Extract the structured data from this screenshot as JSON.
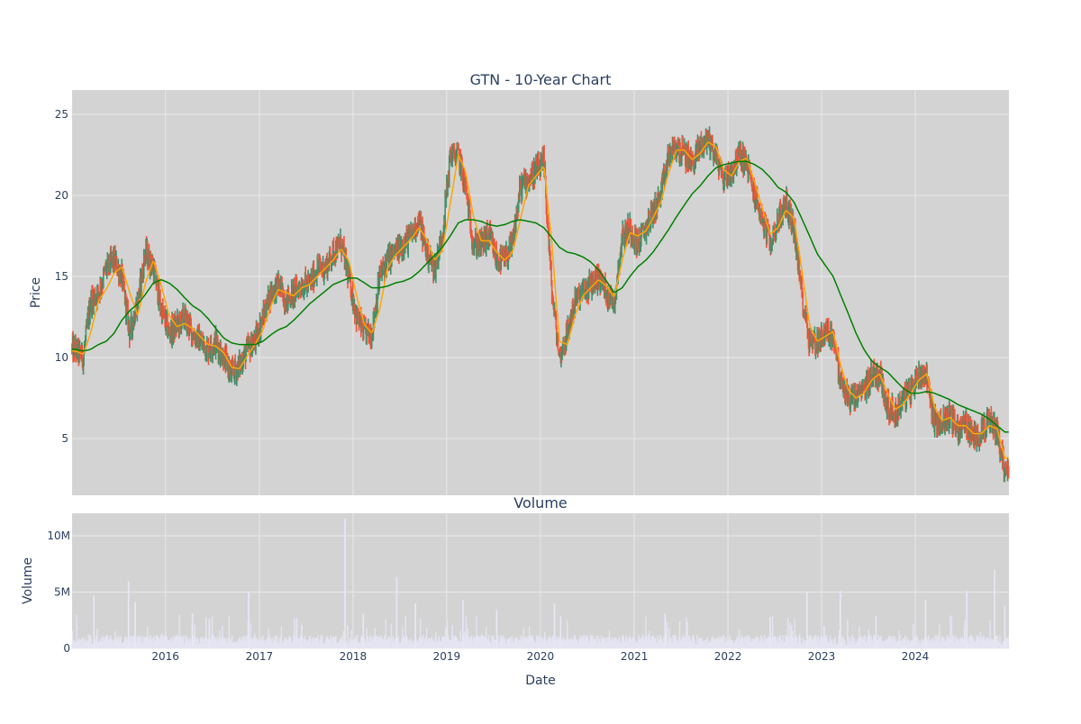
{
  "chart_data": [
    {
      "type": "candlestick",
      "title": "GTN - 10-Year Chart",
      "ylabel": "Price",
      "ylim": [
        1.5,
        26.5
      ],
      "x_range": [
        "2015-01-02",
        "2024-12-31"
      ],
      "yticks": [
        5,
        10,
        15,
        20,
        25
      ],
      "grid": true,
      "legend": "none",
      "colors": {
        "increasing": "#3d8f6a",
        "decreasing": "#ef553b",
        "ma_short": "#ffa500",
        "ma_long": "#008000",
        "plot_bg": "#d3d3d3",
        "grid": "#e8e8e8",
        "text": "#2a3f5f"
      },
      "x": [
        "2015-01",
        "2015-02",
        "2015-03",
        "2015-04",
        "2015-05",
        "2015-06",
        "2015-07",
        "2015-08",
        "2015-09",
        "2015-10",
        "2015-11",
        "2015-12",
        "2016-01",
        "2016-02",
        "2016-03",
        "2016-04",
        "2016-05",
        "2016-06",
        "2016-07",
        "2016-08",
        "2016-09",
        "2016-10",
        "2016-11",
        "2016-12",
        "2017-01",
        "2017-02",
        "2017-03",
        "2017-04",
        "2017-05",
        "2017-06",
        "2017-07",
        "2017-08",
        "2017-09",
        "2017-10",
        "2017-11",
        "2017-12",
        "2018-01",
        "2018-02",
        "2018-03",
        "2018-04",
        "2018-05",
        "2018-06",
        "2018-07",
        "2018-08",
        "2018-09",
        "2018-10",
        "2018-11",
        "2018-12",
        "2019-01",
        "2019-02",
        "2019-03",
        "2019-04",
        "2019-05",
        "2019-06",
        "2019-07",
        "2019-08",
        "2019-09",
        "2019-10",
        "2019-11",
        "2019-12",
        "2020-01",
        "2020-02",
        "2020-03",
        "2020-04",
        "2020-05",
        "2020-06",
        "2020-07",
        "2020-08",
        "2020-09",
        "2020-10",
        "2020-11",
        "2020-12",
        "2021-01",
        "2021-02",
        "2021-03",
        "2021-04",
        "2021-05",
        "2021-06",
        "2021-07",
        "2021-08",
        "2021-09",
        "2021-10",
        "2021-11",
        "2021-12",
        "2022-01",
        "2022-02",
        "2022-03",
        "2022-04",
        "2022-05",
        "2022-06",
        "2022-07",
        "2022-08",
        "2022-09",
        "2022-10",
        "2022-11",
        "2022-12",
        "2023-01",
        "2023-02",
        "2023-03",
        "2023-04",
        "2023-05",
        "2023-06",
        "2023-07",
        "2023-08",
        "2023-09",
        "2023-10",
        "2023-11",
        "2023-12",
        "2024-01",
        "2024-02",
        "2024-03",
        "2024-04",
        "2024-05",
        "2024-06",
        "2024-07",
        "2024-08",
        "2024-09",
        "2024-10",
        "2024-11",
        "2024-12"
      ],
      "close": [
        10.5,
        10.0,
        13.5,
        14.0,
        15.5,
        16.0,
        15.0,
        11.5,
        13.5,
        16.5,
        15.5,
        13.0,
        11.5,
        12.0,
        12.5,
        11.5,
        11.0,
        10.5,
        11.0,
        10.0,
        9.0,
        9.5,
        10.5,
        11.0,
        12.5,
        14.0,
        14.5,
        13.5,
        14.0,
        14.5,
        14.5,
        15.5,
        15.5,
        16.5,
        17.0,
        15.0,
        12.5,
        11.5,
        11.5,
        15.0,
        16.0,
        16.5,
        17.0,
        17.5,
        18.5,
        16.5,
        15.5,
        17.5,
        22.5,
        22.5,
        20.5,
        17.0,
        17.0,
        17.5,
        16.0,
        16.0,
        17.0,
        20.5,
        21.0,
        21.5,
        22.0,
        14.0,
        10.0,
        11.5,
        13.5,
        14.0,
        14.5,
        15.0,
        14.0,
        13.5,
        17.5,
        18.0,
        17.0,
        18.0,
        19.0,
        20.0,
        22.5,
        23.0,
        22.5,
        22.0,
        23.0,
        23.5,
        22.5,
        21.0,
        21.5,
        22.5,
        22.0,
        20.0,
        18.5,
        17.0,
        18.5,
        19.5,
        18.0,
        14.0,
        11.0,
        11.0,
        11.5,
        11.5,
        8.5,
        7.5,
        7.5,
        8.0,
        9.0,
        9.0,
        7.0,
        6.5,
        7.5,
        8.0,
        9.0,
        9.0,
        6.0,
        6.0,
        6.5,
        5.5,
        6.0,
        5.0,
        5.5,
        6.0,
        5.5,
        3.0
      ],
      "ma_short": [
        10.4,
        10.2,
        11.5,
        13.5,
        14.2,
        15.2,
        15.6,
        14.0,
        12.6,
        14.6,
        16.0,
        14.5,
        12.6,
        11.9,
        12.1,
        11.8,
        11.3,
        10.8,
        10.7,
        10.3,
        9.4,
        9.3,
        10.1,
        10.8,
        11.7,
        13.2,
        14.2,
        14.0,
        13.8,
        14.3,
        14.5,
        15.0,
        15.5,
        16.0,
        16.7,
        16.0,
        13.8,
        12.0,
        11.5,
        13.0,
        15.5,
        16.3,
        16.8,
        17.3,
        18.0,
        17.3,
        16.0,
        16.6,
        19.5,
        22.5,
        21.5,
        18.7,
        17.2,
        17.2,
        16.5,
        16.0,
        16.5,
        18.5,
        20.6,
        21.2,
        21.8,
        17.0,
        11.0,
        10.8,
        12.6,
        13.8,
        14.3,
        14.8,
        14.4,
        13.7,
        16.0,
        17.7,
        17.5,
        17.8,
        18.6,
        19.6,
        21.4,
        22.8,
        22.8,
        22.2,
        22.6,
        23.3,
        23.0,
        21.6,
        21.2,
        22.1,
        22.3,
        20.8,
        19.2,
        17.6,
        18.0,
        19.1,
        18.6,
        15.5,
        12.0,
        11.0,
        11.3,
        11.6,
        9.6,
        8.0,
        7.5,
        7.8,
        8.6,
        9.0,
        7.8,
        6.8,
        7.1,
        7.8,
        8.6,
        9.0,
        7.0,
        6.1,
        6.3,
        5.8,
        5.8,
        5.3,
        5.3,
        5.8,
        5.6,
        3.8
      ],
      "ma_long": [
        10.5,
        10.4,
        10.5,
        10.8,
        11.0,
        11.5,
        12.3,
        12.9,
        13.3,
        13.9,
        14.6,
        14.8,
        14.6,
        14.2,
        13.7,
        13.2,
        12.9,
        12.4,
        11.8,
        11.2,
        10.9,
        10.8,
        10.8,
        10.8,
        11.0,
        11.4,
        11.7,
        11.9,
        12.3,
        12.8,
        13.3,
        13.7,
        14.1,
        14.5,
        14.7,
        14.9,
        14.9,
        14.6,
        14.3,
        14.3,
        14.4,
        14.6,
        14.7,
        14.9,
        15.3,
        15.8,
        16.3,
        16.8,
        17.5,
        18.3,
        18.5,
        18.5,
        18.4,
        18.2,
        18.1,
        18.2,
        18.4,
        18.5,
        18.4,
        18.3,
        18.0,
        17.4,
        16.8,
        16.5,
        16.4,
        16.2,
        15.9,
        15.4,
        14.7,
        14.0,
        14.3,
        15.0,
        15.6,
        16.0,
        16.5,
        17.2,
        17.9,
        18.7,
        19.4,
        20.1,
        20.6,
        21.2,
        21.7,
        21.9,
        22.0,
        22.1,
        22.1,
        21.9,
        21.6,
        21.1,
        20.5,
        20.2,
        19.6,
        18.6,
        17.5,
        16.4,
        15.7,
        15.0,
        13.9,
        12.7,
        11.5,
        10.5,
        9.8,
        9.4,
        9.1,
        8.6,
        8.1,
        7.8,
        7.8,
        7.9,
        7.8,
        7.6,
        7.4,
        7.1,
        6.9,
        6.7,
        6.5,
        6.2,
        5.8,
        5.4
      ]
    },
    {
      "type": "bar",
      "title": "Volume",
      "xlabel": "Date",
      "ylabel": "Volume",
      "ylim": [
        0,
        12000000
      ],
      "ytick_labels": [
        "0",
        "5M",
        "10M"
      ],
      "yticks": [
        0,
        5000000,
        10000000
      ],
      "xtick_labels": [
        "2016",
        "2017",
        "2018",
        "2019",
        "2020",
        "2021",
        "2022",
        "2023",
        "2024"
      ],
      "color": "#e0e0ef",
      "base_volume_approx": 600000,
      "peaks": [
        {
          "date": "2015-03-28",
          "value": 4700000
        },
        {
          "date": "2015-08-10",
          "value": 6000000
        },
        {
          "date": "2015-09-05",
          "value": 4100000
        },
        {
          "date": "2016-04-15",
          "value": 3100000
        },
        {
          "date": "2016-06-20",
          "value": 2600000
        },
        {
          "date": "2016-11-20",
          "value": 5000000
        },
        {
          "date": "2017-06-15",
          "value": 2100000
        },
        {
          "date": "2017-12-01",
          "value": 11500000
        },
        {
          "date": "2018-02-10",
          "value": 3100000
        },
        {
          "date": "2018-06-20",
          "value": 6300000
        },
        {
          "date": "2018-09-01",
          "value": 4000000
        },
        {
          "date": "2019-03-05",
          "value": 4300000
        },
        {
          "date": "2019-07-15",
          "value": 3400000
        },
        {
          "date": "2020-02-25",
          "value": 4000000
        },
        {
          "date": "2020-03-20",
          "value": 2900000
        },
        {
          "date": "2021-05-01",
          "value": 3100000
        },
        {
          "date": "2022-06-15",
          "value": 2800000
        },
        {
          "date": "2022-11-05",
          "value": 5000000
        },
        {
          "date": "2023-03-15",
          "value": 5100000
        },
        {
          "date": "2023-08-01",
          "value": 2900000
        },
        {
          "date": "2024-02-10",
          "value": 4300000
        },
        {
          "date": "2024-07-20",
          "value": 5100000
        },
        {
          "date": "2024-11-05",
          "value": 7000000
        },
        {
          "date": "2024-12-15",
          "value": 3800000
        }
      ]
    }
  ]
}
